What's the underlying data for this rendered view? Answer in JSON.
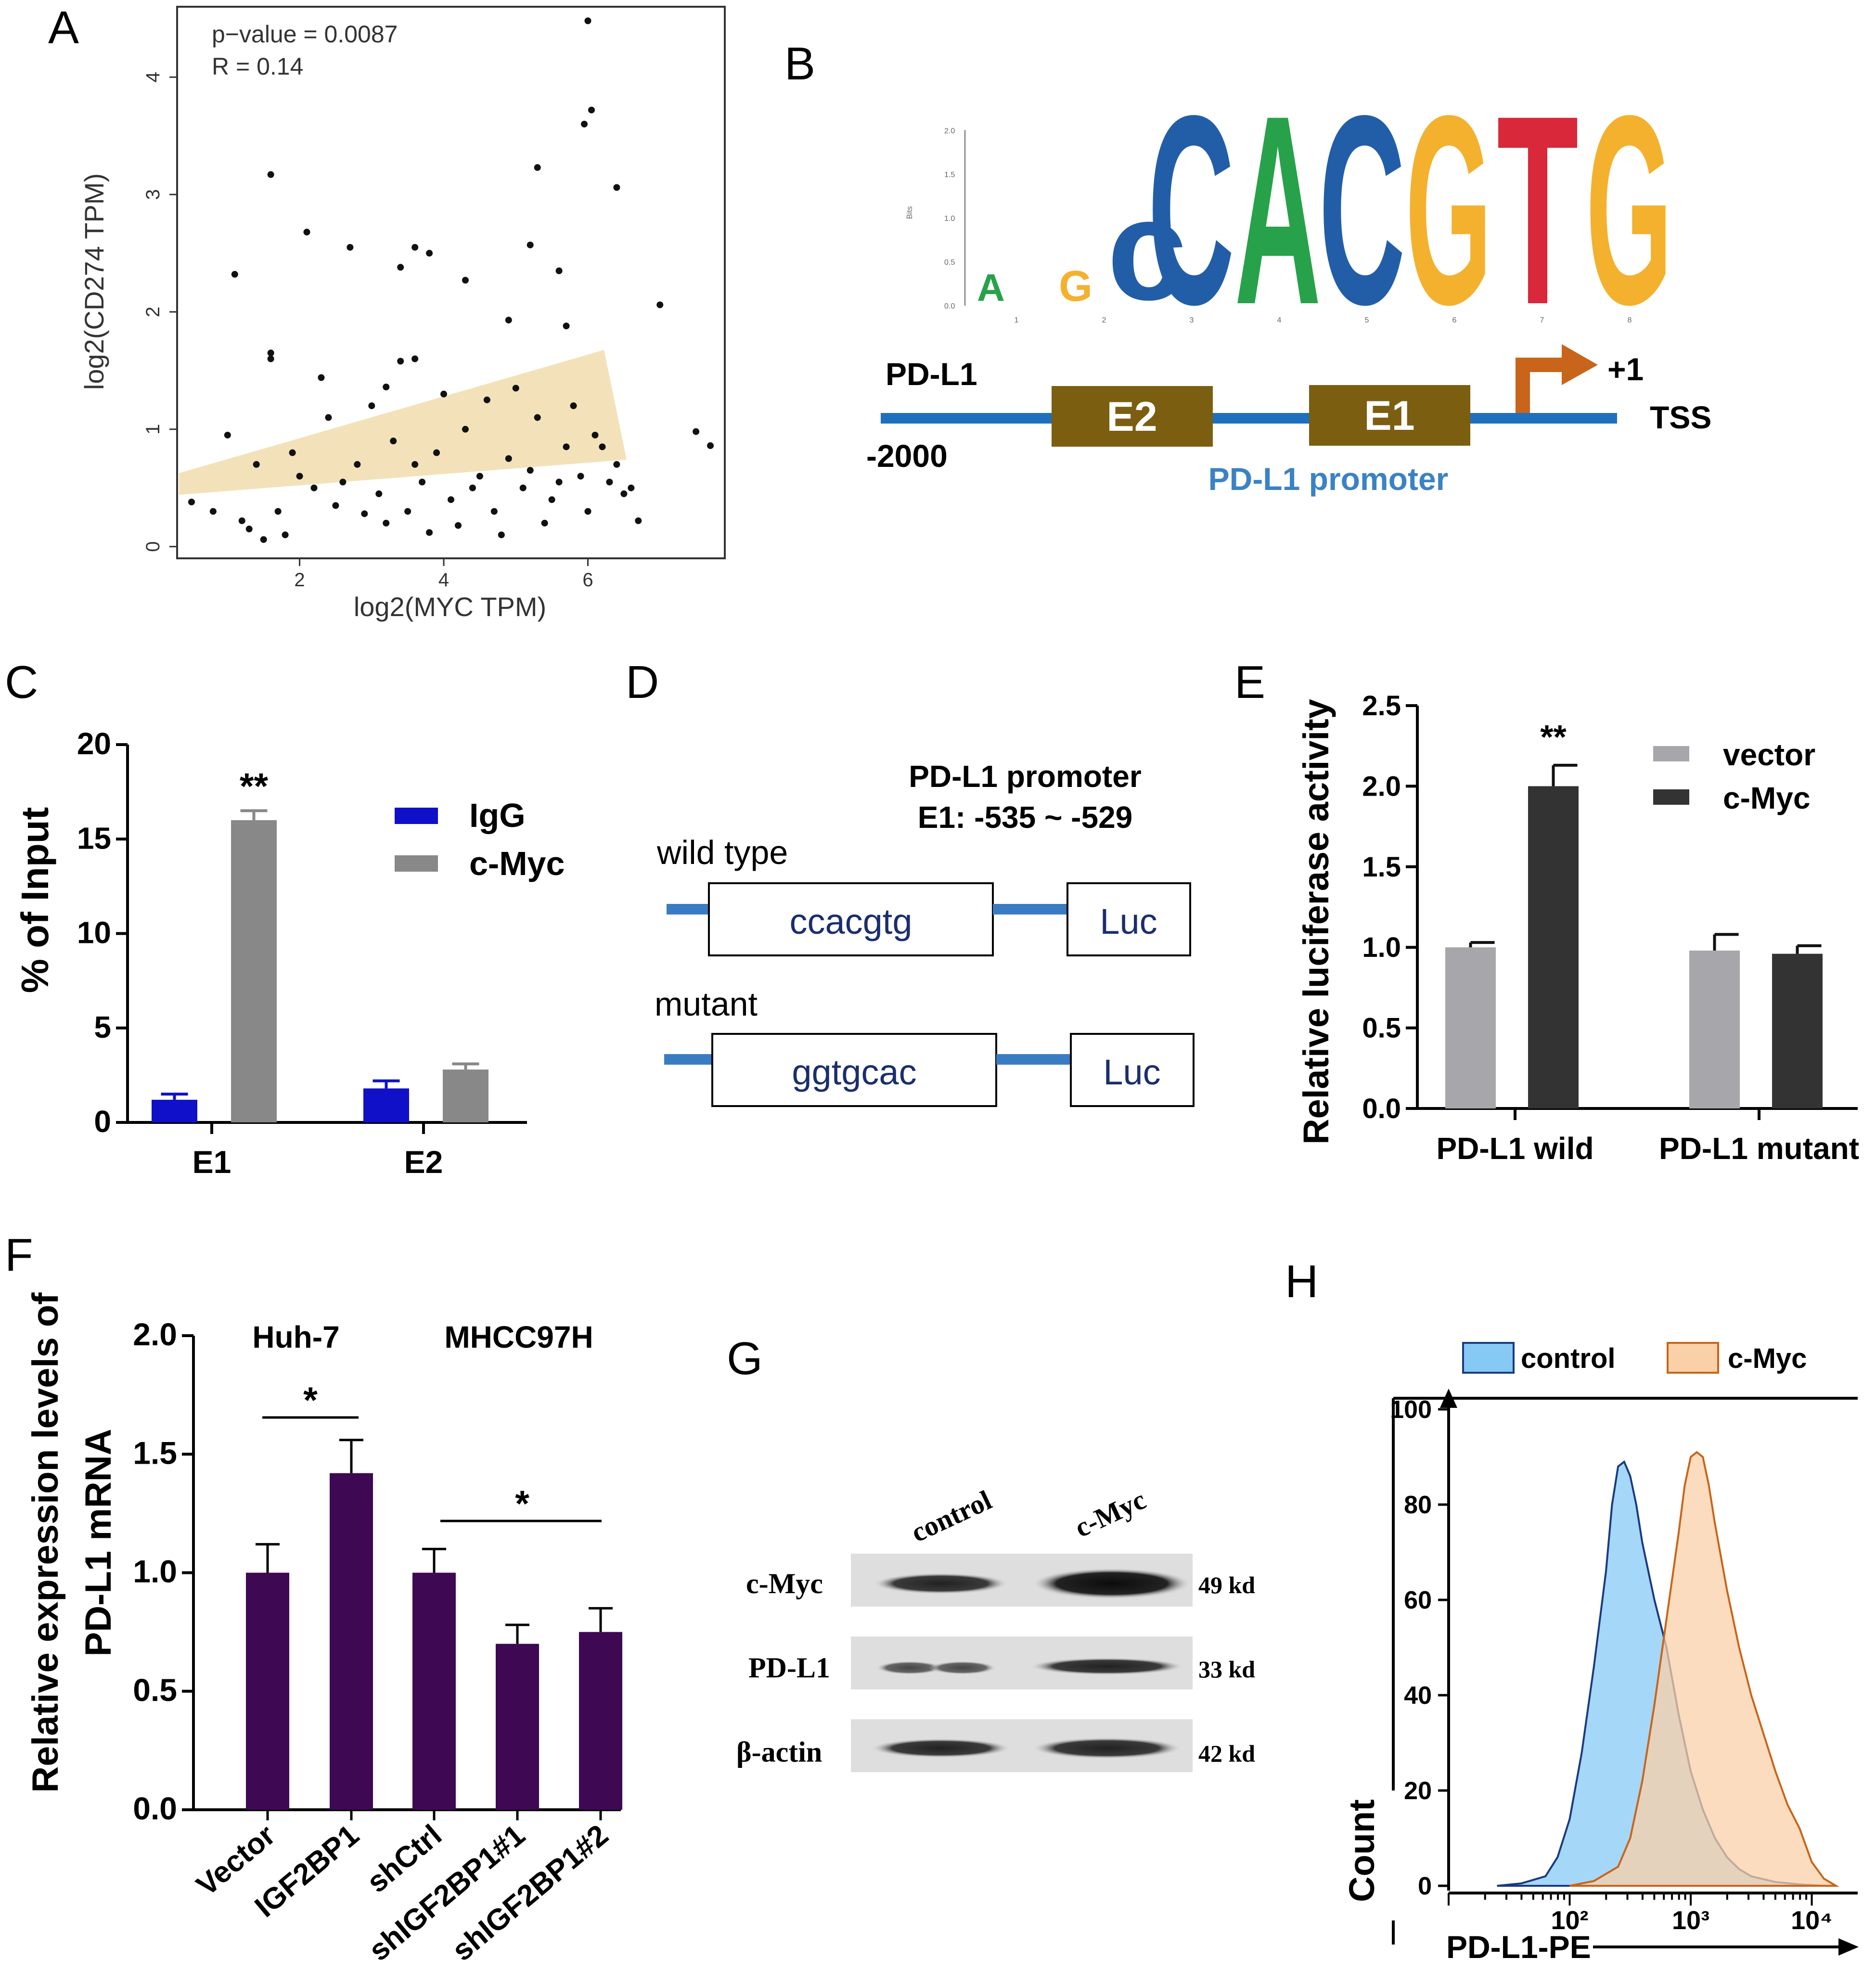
{
  "panels": {
    "A": "A",
    "B": "B",
    "C": "C",
    "D": "D",
    "E": "E",
    "F": "F",
    "G": "G",
    "H": "H"
  },
  "chart_data": [
    {
      "id": "A",
      "type": "scatter",
      "xlabel": "log2(MYC TPM)",
      "ylabel": "log2(CD274 TPM)",
      "annotations": [
        "p−value = 0.0087",
        "R = 0.14"
      ],
      "xlim": [
        0.3,
        7.9
      ],
      "ylim": [
        -0.1,
        4.6
      ],
      "xticks": [
        "2",
        "4",
        "6"
      ],
      "yticks": [
        "0",
        "1",
        "2",
        "3",
        "4"
      ],
      "points": [
        [
          6.0,
          4.48
        ],
        [
          6.05,
          3.72
        ],
        [
          5.95,
          3.6
        ],
        [
          6.4,
          3.06
        ],
        [
          5.3,
          3.23
        ],
        [
          1.6,
          3.17
        ],
        [
          2.1,
          2.68
        ],
        [
          2.7,
          2.55
        ],
        [
          3.6,
          2.55
        ],
        [
          3.8,
          2.5
        ],
        [
          5.2,
          2.57
        ],
        [
          4.3,
          2.27
        ],
        [
          1.1,
          2.32
        ],
        [
          3.4,
          2.38
        ],
        [
          5.6,
          2.35
        ],
        [
          7.0,
          2.06
        ],
        [
          4.9,
          1.93
        ],
        [
          5.7,
          1.88
        ],
        [
          1.6,
          1.65
        ],
        [
          1.6,
          1.6
        ],
        [
          2.3,
          1.44
        ],
        [
          3.2,
          1.36
        ],
        [
          3.6,
          1.6
        ],
        [
          3.4,
          1.58
        ],
        [
          7.5,
          0.98
        ],
        [
          7.7,
          0.86
        ],
        [
          0.5,
          0.38
        ],
        [
          0.8,
          0.3
        ],
        [
          1.2,
          0.22
        ],
        [
          1.3,
          0.15
        ],
        [
          1.5,
          0.06
        ],
        [
          1.8,
          0.1
        ],
        [
          2.2,
          0.5
        ],
        [
          2.5,
          0.35
        ],
        [
          2.8,
          0.7
        ],
        [
          3.1,
          0.45
        ],
        [
          3.3,
          0.9
        ],
        [
          3.5,
          0.3
        ],
        [
          3.7,
          0.55
        ],
        [
          3.9,
          0.8
        ],
        [
          4.1,
          0.4
        ],
        [
          4.3,
          1.0
        ],
        [
          4.5,
          0.6
        ],
        [
          4.7,
          0.3
        ],
        [
          4.9,
          0.75
        ],
        [
          5.1,
          0.5
        ],
        [
          5.3,
          1.1
        ],
        [
          5.5,
          0.4
        ],
        [
          5.7,
          0.85
        ],
        [
          5.9,
          0.6
        ],
        [
          6.1,
          0.95
        ],
        [
          6.3,
          0.55
        ],
        [
          6.5,
          0.45
        ],
        [
          6.7,
          0.22
        ],
        [
          1.0,
          0.95
        ],
        [
          1.4,
          0.7
        ],
        [
          1.9,
          0.8
        ],
        [
          2.4,
          1.1
        ],
        [
          2.6,
          0.55
        ],
        [
          3.0,
          1.2
        ],
        [
          3.2,
          0.2
        ],
        [
          3.8,
          0.12
        ],
        [
          4.0,
          1.3
        ],
        [
          4.2,
          0.18
        ],
        [
          4.6,
          1.25
        ],
        [
          4.8,
          0.1
        ],
        [
          5.0,
          1.35
        ],
        [
          5.4,
          0.2
        ],
        [
          5.8,
          1.2
        ],
        [
          6.0,
          0.3
        ],
        [
          6.2,
          0.85
        ],
        [
          6.6,
          0.5
        ],
        [
          1.7,
          0.3
        ],
        [
          2.0,
          0.6
        ],
        [
          2.9,
          0.28
        ],
        [
          3.6,
          0.7
        ],
        [
          4.4,
          0.5
        ],
        [
          5.2,
          0.65
        ],
        [
          5.6,
          0.55
        ],
        [
          6.4,
          0.7
        ]
      ]
    },
    {
      "id": "C",
      "type": "bar",
      "ylabel": "% of Input",
      "categories": [
        "E1",
        "E2"
      ],
      "ylim": [
        0,
        20
      ],
      "yticks": [
        "0",
        "5",
        "10",
        "15",
        "20"
      ],
      "series": [
        {
          "name": "IgG",
          "values": [
            1.2,
            1.8
          ],
          "errors": [
            0.3,
            0.4
          ],
          "color": "#1010c8"
        },
        {
          "name": "c-Myc",
          "values": [
            16.0,
            2.8
          ],
          "errors": [
            0.5,
            0.3
          ],
          "color": "#888888"
        }
      ],
      "significance": [
        "**",
        ""
      ]
    },
    {
      "id": "E",
      "type": "bar",
      "ylabel": "Relative luciferase activity",
      "categories": [
        "PD-L1 wild",
        "PD-L1 mutant"
      ],
      "ylim": [
        0,
        2.5
      ],
      "yticks": [
        "0.0",
        "0.5",
        "1.0",
        "1.5",
        "2.0",
        "2.5"
      ],
      "series": [
        {
          "name": "vector",
          "values": [
            1.0,
            0.98
          ],
          "errors": [
            0.03,
            0.1
          ],
          "color": "#a7a7ab"
        },
        {
          "name": "c-Myc",
          "values": [
            2.0,
            0.96
          ],
          "errors": [
            0.13,
            0.05
          ],
          "color": "#333333"
        }
      ],
      "significance": [
        "**",
        ""
      ]
    },
    {
      "id": "F",
      "type": "bar",
      "ylabel": [
        "Relative expression levels of",
        "PD-L1 mRNA"
      ],
      "groups": [
        "Huh-7",
        "MHCC97H"
      ],
      "categories": [
        "Vector",
        "IGF2BP1",
        "shCtrl",
        "shIGF2BP1#1",
        "shIGF2BP1#2"
      ],
      "values": [
        1.0,
        1.42,
        1.0,
        0.7,
        0.75
      ],
      "errors": [
        0.12,
        0.14,
        0.1,
        0.08,
        0.1
      ],
      "ylim": [
        0,
        2.0
      ],
      "yticks": [
        "0.0",
        "0.5",
        "1.0",
        "1.5",
        "2.0"
      ],
      "significance": [
        "*",
        "*"
      ],
      "color": "#3e0853"
    },
    {
      "id": "H",
      "type": "area",
      "xlabel": "PD-L1-PE",
      "ylabel": "Count",
      "ylim": [
        0,
        100
      ],
      "yticks": [
        "0",
        "20",
        "40",
        "60",
        "80",
        "100"
      ],
      "xticks": [
        "10²",
        "10³",
        "10⁴"
      ],
      "series": [
        {
          "name": "control",
          "color": "#87c9f5",
          "x": [
            1.4,
            1.6,
            1.8,
            1.9,
            2.0,
            2.1,
            2.2,
            2.3,
            2.35,
            2.4,
            2.45,
            2.5,
            2.55,
            2.6,
            2.7,
            2.8,
            2.9,
            3.0,
            3.1,
            3.2,
            3.3,
            3.4,
            3.5,
            3.7,
            3.9,
            4.1
          ],
          "y": [
            0,
            0.5,
            2,
            6,
            14,
            28,
            46,
            66,
            80,
            88,
            89,
            86,
            80,
            72,
            60,
            50,
            36,
            24,
            16,
            10,
            6,
            3.5,
            2,
            0.8,
            0.3,
            0
          ]
        },
        {
          "name": "c-Myc",
          "color": "#fad0a8",
          "x": [
            2.0,
            2.2,
            2.4,
            2.5,
            2.6,
            2.7,
            2.8,
            2.9,
            2.95,
            3.0,
            3.05,
            3.1,
            3.15,
            3.2,
            3.3,
            3.4,
            3.5,
            3.6,
            3.7,
            3.8,
            3.9,
            4.0,
            4.1,
            4.2
          ],
          "y": [
            0,
            1,
            4,
            10,
            22,
            38,
            56,
            74,
            84,
            90,
            91,
            90,
            84,
            76,
            62,
            50,
            40,
            32,
            24,
            17,
            12,
            5,
            1.5,
            0
          ]
        }
      ]
    }
  ],
  "panelB": {
    "logo_axis": [
      "0.0",
      "0.5",
      "1.0",
      "1.5",
      "2.0"
    ],
    "logo_positions": [
      "1",
      "2",
      "3",
      "4",
      "5",
      "6",
      "7",
      "8"
    ],
    "gene": "PD-L1",
    "start": "-2000",
    "tss_label": "TSS",
    "plus_one": "+1",
    "boxes": [
      "E2",
      "E1"
    ],
    "promoter_label": "PD-L1 promoter"
  },
  "panelD": {
    "title": "PD-L1 promoter",
    "subtitle": "E1:  -535 ~ -529",
    "rows": [
      {
        "label": "wild type",
        "seq": "ccacgtg",
        "reporter": "Luc"
      },
      {
        "label": "mutant",
        "seq": "ggtgcac",
        "reporter": "Luc"
      }
    ]
  },
  "panelG": {
    "lanes": [
      "control",
      "c-Myc"
    ],
    "rows": [
      {
        "label": "c-Myc",
        "size": "49 kd"
      },
      {
        "label": "PD-L1",
        "size": "33 kd"
      },
      {
        "label": "β-actin",
        "size": "42 kd"
      }
    ]
  },
  "colors": {
    "ribbon": "#f3e2b9",
    "blue_line": "#1f6fbf",
    "brown_box": "#7b5e10",
    "arrow": "#c8651a",
    "promoter_text": "#3b82c4"
  }
}
